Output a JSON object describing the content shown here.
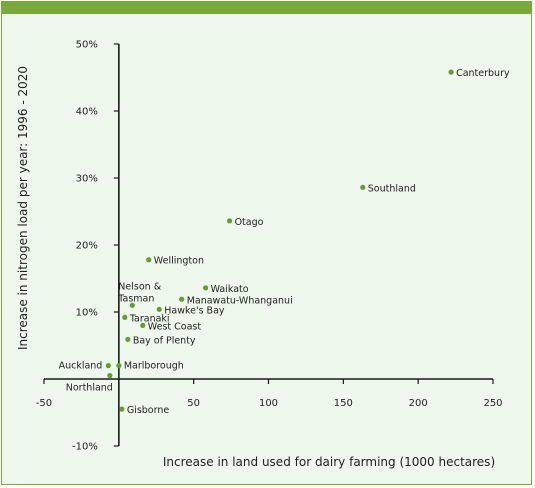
{
  "colors": {
    "accent": "#79a83c",
    "panel_bg": "#eef7eb",
    "point": "#6a9a34",
    "axis": "#1a1a1a"
  },
  "chart_data": {
    "type": "scatter",
    "title": "",
    "xlabel": "Increase in land used for dairy farming (1000 hectares)",
    "ylabel": "Increase in nitrogen load per year: 1996 - 2020",
    "xlim": [
      -50,
      250
    ],
    "ylim": [
      -10,
      50
    ],
    "xticks": [
      -50,
      50,
      100,
      150,
      200,
      250
    ],
    "xtick_labels": [
      "-50",
      "50",
      "100",
      "150",
      "200",
      "250"
    ],
    "yticks": [
      -10,
      10,
      20,
      30,
      40,
      50
    ],
    "ytick_labels": [
      "-10%",
      "10%",
      "20%",
      "30%",
      "40%",
      "50%"
    ],
    "grid": false,
    "points": [
      {
        "label": "Canterbury",
        "x": 222,
        "y": 45.8
      },
      {
        "label": "Southland",
        "x": 163,
        "y": 28.6
      },
      {
        "label": "Otago",
        "x": 74,
        "y": 23.6
      },
      {
        "label": "Wellington",
        "x": 20,
        "y": 17.8
      },
      {
        "label": "Waikato",
        "x": 58,
        "y": 13.6
      },
      {
        "label": "Manawatu-Whanganui",
        "x": 42,
        "y": 11.9
      },
      {
        "label": "Hawke's Bay",
        "x": 27,
        "y": 10.4
      },
      {
        "label": "Nelson & Tasman",
        "x": 9,
        "y": 11.0
      },
      {
        "label": "Taranaki",
        "x": 4,
        "y": 9.2
      },
      {
        "label": "West Coast",
        "x": 16,
        "y": 8.0
      },
      {
        "label": "Bay of Plenty",
        "x": 6,
        "y": 5.9
      },
      {
        "label": "Auckland",
        "x": -7,
        "y": 2.0
      },
      {
        "label": "Marlborough",
        "x": 0,
        "y": 2.0
      },
      {
        "label": "Northland",
        "x": -6,
        "y": 0.5
      },
      {
        "label": "Gisborne",
        "x": 2,
        "y": -4.5
      }
    ]
  }
}
